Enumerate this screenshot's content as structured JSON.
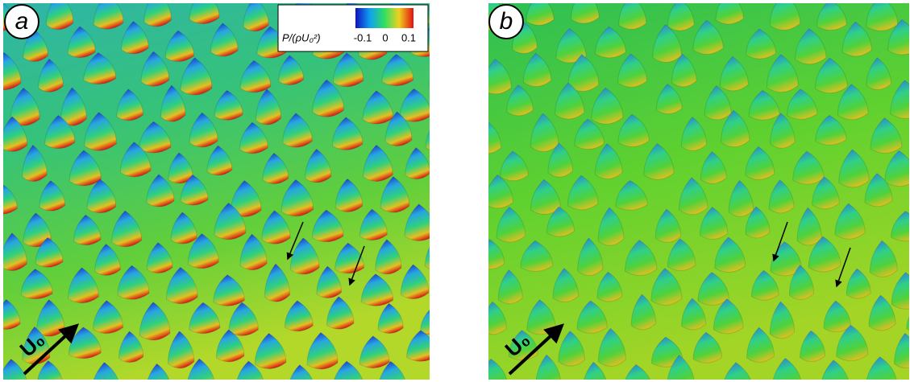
{
  "panels": [
    {
      "label": "a",
      "flow_label": "U₀"
    },
    {
      "label": "b",
      "flow_label": "U₀"
    }
  ],
  "colorbar": {
    "label": "P/(ρU₀²)",
    "ticks": [
      -0.1,
      0,
      0.1
    ]
  }
}
